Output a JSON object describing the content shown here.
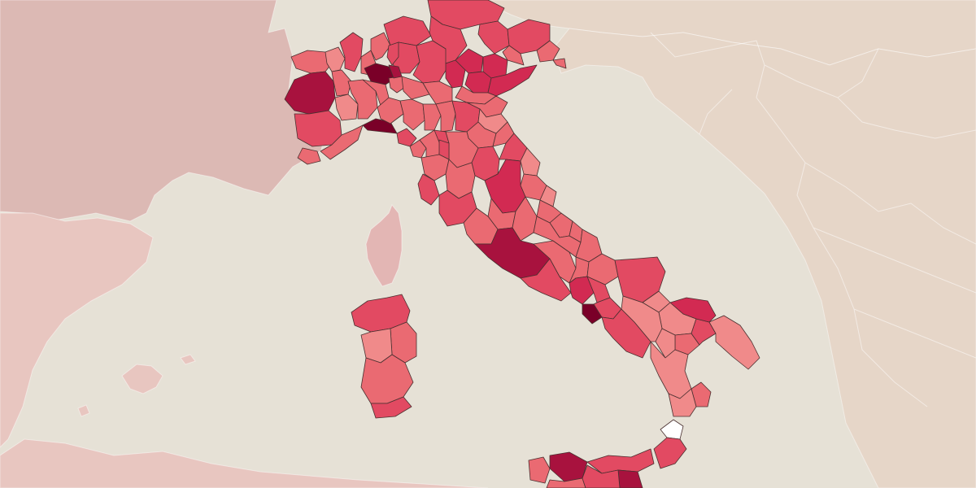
{
  "map": {
    "region": "Italy",
    "division": "provinces",
    "style": "choropleth",
    "colors": {
      "sea": "#e6e1d6",
      "france": "#dcb9b4",
      "balkans": "#e6d6c8",
      "austria": "#e6d6c8",
      "corsica": "#e3b6b4",
      "north_africa": "#e8c6c0",
      "province_border": "#4a3030",
      "scale": [
        "#ffffff",
        "#f6b6b6",
        "#f08a8a",
        "#ea6a72",
        "#e24a62",
        "#d22a52",
        "#a8123e",
        "#7a0028"
      ]
    }
  }
}
